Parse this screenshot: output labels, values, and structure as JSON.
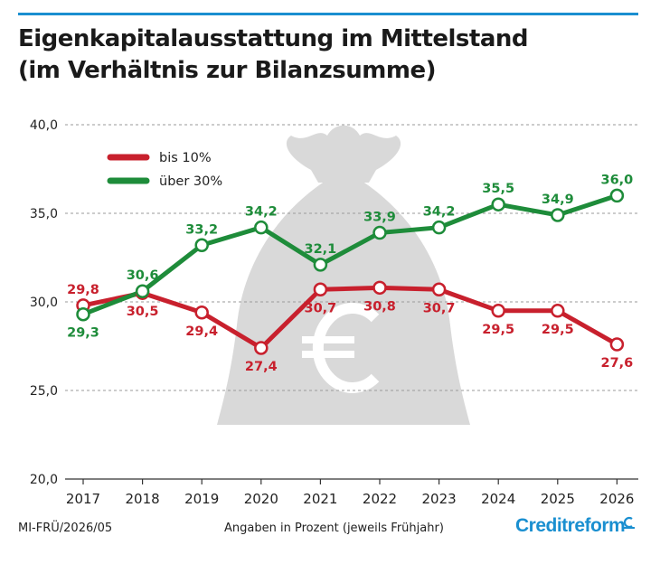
{
  "header": {
    "title_line1": "Eigenkapitalausstattung im Mittelstand",
    "title_line2": "(im Verhältnis zur Bilanzsumme)"
  },
  "footer": {
    "code": "MI-FRÜ/2026/05",
    "note": "Angaben in Prozent (jeweils Frühjahr)",
    "brand": "Creditreform"
  },
  "colors": {
    "red": "#c8202d",
    "green": "#1e8c3a",
    "grid": "#9a9a9a",
    "bag": "#d9d9d9",
    "brand": "#1a8fd0"
  },
  "chart_data": {
    "type": "line",
    "x": [
      "2017",
      "2018",
      "2019",
      "2020",
      "2021",
      "2022",
      "2023",
      "2024",
      "2025",
      "2026"
    ],
    "ylim": [
      20,
      40
    ],
    "yticks": [
      "20,0",
      "25,0",
      "30,0",
      "35,0",
      "40,0"
    ],
    "ytick_values": [
      20,
      25,
      30,
      35,
      40
    ],
    "grid": true,
    "legend_position": "top-left",
    "series": [
      {
        "name": "bis 10%",
        "color": "#c8202d",
        "values": [
          29.8,
          30.5,
          29.4,
          27.4,
          30.7,
          30.8,
          30.7,
          29.5,
          29.5,
          27.6
        ],
        "labels": [
          "29,8",
          "30,5",
          "29,4",
          "27,4",
          "30,7",
          "30,8",
          "30,7",
          "29,5",
          "29,5",
          "27,6"
        ]
      },
      {
        "name": "über 30%",
        "color": "#1e8c3a",
        "values": [
          29.3,
          30.6,
          33.2,
          34.2,
          32.1,
          33.9,
          34.2,
          35.5,
          34.9,
          36.0
        ],
        "labels": [
          "29,3",
          "30,6",
          "33,2",
          "34,2",
          "32,1",
          "33,9",
          "34,2",
          "35,5",
          "34,9",
          "36,0"
        ]
      }
    ]
  }
}
